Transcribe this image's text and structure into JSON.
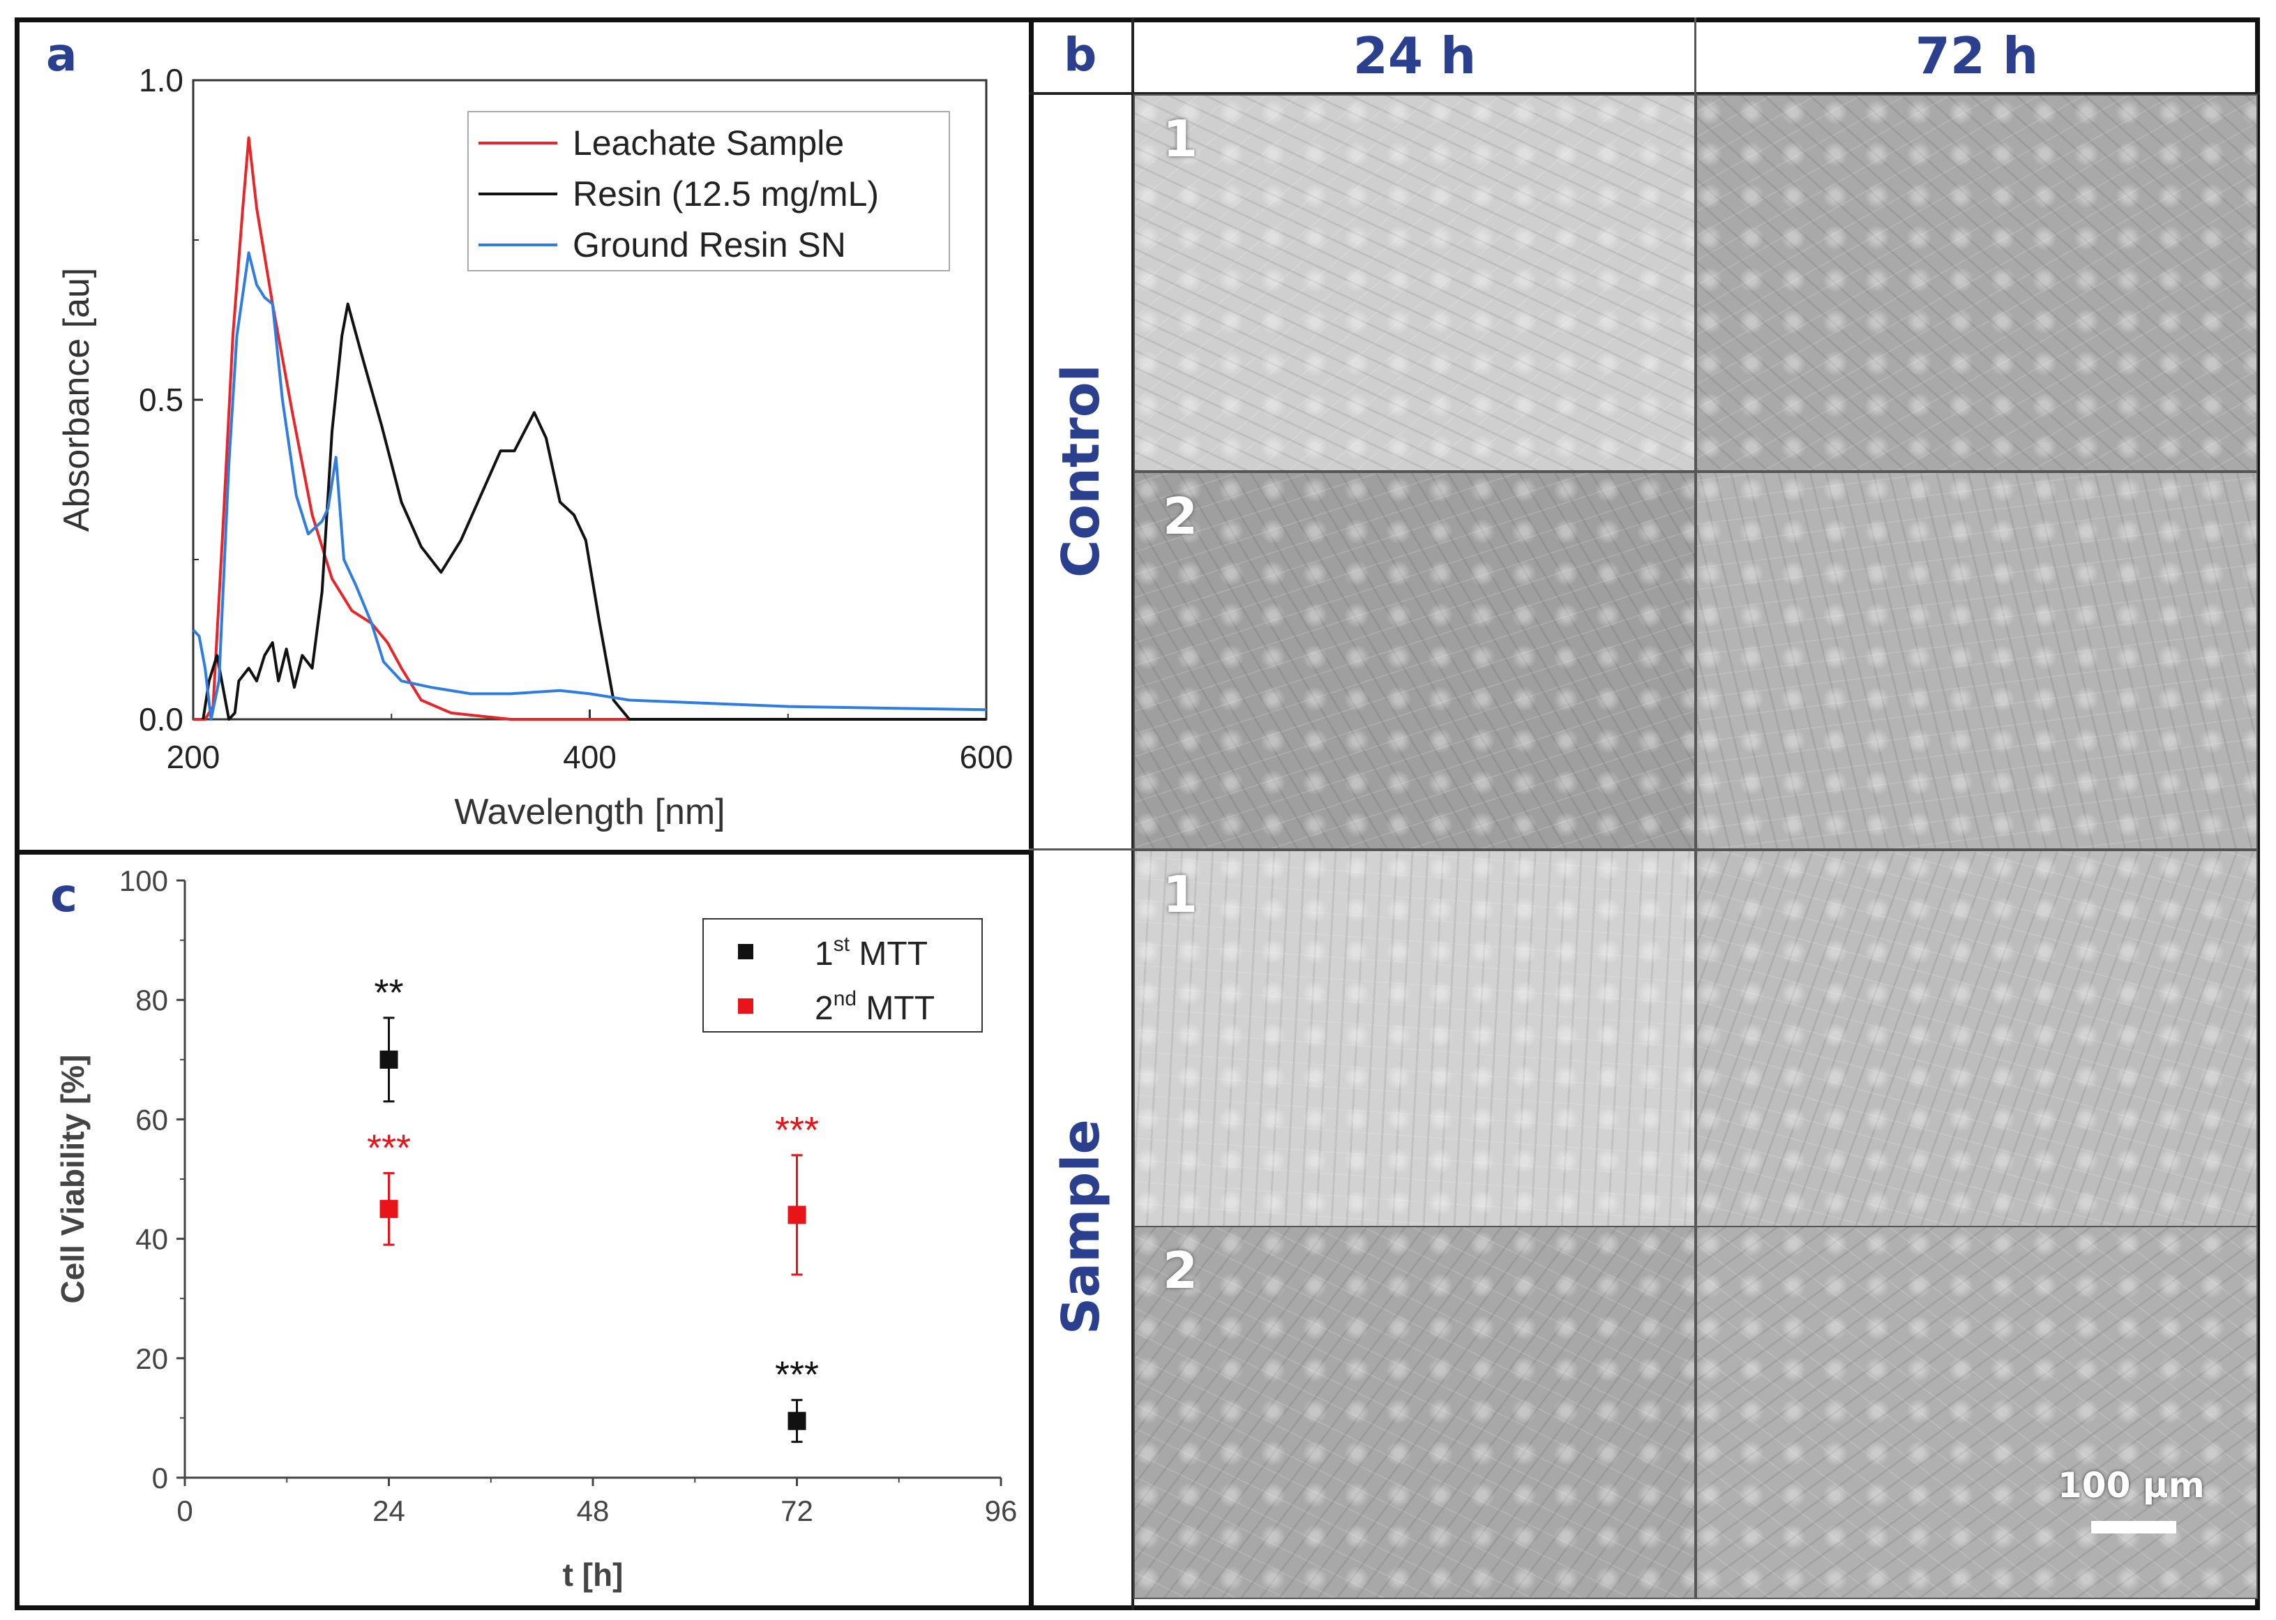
{
  "panels": {
    "a": {
      "label": "a"
    },
    "b": {
      "label": "b",
      "columns": [
        "24 h",
        "72 h"
      ],
      "rows": [
        "Control",
        "Sample"
      ],
      "tile_numbers": [
        "1",
        "2"
      ],
      "scale_bar": "100 µm",
      "tiles": [
        {
          "row": "Control",
          "num": "1",
          "col": "24 h",
          "tone": "#cfcfcf"
        },
        {
          "row": "Control",
          "num": "1",
          "col": "72 h",
          "tone": "#a9a9a9"
        },
        {
          "row": "Control",
          "num": "2",
          "col": "24 h",
          "tone": "#9f9f9f"
        },
        {
          "row": "Control",
          "num": "2",
          "col": "72 h",
          "tone": "#b4b4b4"
        },
        {
          "row": "Sample",
          "num": "1",
          "col": "24 h",
          "tone": "#d2d2d2"
        },
        {
          "row": "Sample",
          "num": "1",
          "col": "72 h",
          "tone": "#bdbdbd"
        },
        {
          "row": "Sample",
          "num": "2",
          "col": "24 h",
          "tone": "#a8a8a8"
        },
        {
          "row": "Sample",
          "num": "2",
          "col": "72 h",
          "tone": "#b0b0b0"
        }
      ]
    },
    "c": {
      "label": "c"
    }
  },
  "chart_data": [
    {
      "type": "line",
      "xlabel": "Wavelength [nm]",
      "ylabel": "Absorbance [au]",
      "xlim": [
        200,
        600
      ],
      "ylim": [
        0,
        1.0
      ],
      "xticks": [
        "200",
        "400",
        "600"
      ],
      "yticks": [
        "0.0",
        "0.5",
        "1.0"
      ],
      "legend_position": "top-right",
      "series": [
        {
          "name": "Leachate Sample",
          "color": "#e8262a",
          "points": [
            [
              200,
              0
            ],
            [
              206,
              0
            ],
            [
              210,
              0.02
            ],
            [
              215,
              0.3
            ],
            [
              220,
              0.6
            ],
            [
              225,
              0.8
            ],
            [
              228,
              0.91
            ],
            [
              232,
              0.8
            ],
            [
              240,
              0.65
            ],
            [
              250,
              0.48
            ],
            [
              260,
              0.32
            ],
            [
              270,
              0.22
            ],
            [
              280,
              0.17
            ],
            [
              290,
              0.15
            ],
            [
              298,
              0.12
            ],
            [
              305,
              0.08
            ],
            [
              315,
              0.03
            ],
            [
              330,
              0.01
            ],
            [
              360,
              0.0
            ],
            [
              600,
              0.0
            ]
          ]
        },
        {
          "name": "Resin (12.5 mg/mL)",
          "color": "#111111",
          "points": [
            [
              205,
              0
            ],
            [
              208,
              0.06
            ],
            [
              212,
              0.1
            ],
            [
              215,
              0.05
            ],
            [
              218,
              0.0
            ],
            [
              221,
              0.01
            ],
            [
              223,
              0.06
            ],
            [
              228,
              0.08
            ],
            [
              232,
              0.06
            ],
            [
              236,
              0.1
            ],
            [
              240,
              0.12
            ],
            [
              243,
              0.06
            ],
            [
              247,
              0.11
            ],
            [
              251,
              0.05
            ],
            [
              255,
              0.1
            ],
            [
              260,
              0.08
            ],
            [
              265,
              0.2
            ],
            [
              270,
              0.45
            ],
            [
              275,
              0.6
            ],
            [
              278,
              0.65
            ],
            [
              285,
              0.57
            ],
            [
              295,
              0.46
            ],
            [
              305,
              0.34
            ],
            [
              315,
              0.27
            ],
            [
              325,
              0.23
            ],
            [
              335,
              0.28
            ],
            [
              345,
              0.35
            ],
            [
              355,
              0.42
            ],
            [
              362,
              0.42
            ],
            [
              372,
              0.48
            ],
            [
              378,
              0.44
            ],
            [
              385,
              0.34
            ],
            [
              392,
              0.32
            ],
            [
              398,
              0.28
            ],
            [
              405,
              0.15
            ],
            [
              412,
              0.03
            ],
            [
              420,
              0.0
            ],
            [
              600,
              0.0
            ]
          ]
        },
        {
          "name": "Ground Resin SN",
          "color": "#2f7de1",
          "points": [
            [
              200,
              0.14
            ],
            [
              203,
              0.13
            ],
            [
              206,
              0.08
            ],
            [
              209,
              0.0
            ],
            [
              213,
              0.06
            ],
            [
              218,
              0.4
            ],
            [
              222,
              0.6
            ],
            [
              228,
              0.73
            ],
            [
              232,
              0.68
            ],
            [
              236,
              0.66
            ],
            [
              240,
              0.65
            ],
            [
              245,
              0.5
            ],
            [
              252,
              0.35
            ],
            [
              258,
              0.29
            ],
            [
              265,
              0.31
            ],
            [
              268,
              0.33
            ],
            [
              272,
              0.41
            ],
            [
              276,
              0.25
            ],
            [
              282,
              0.21
            ],
            [
              290,
              0.15
            ],
            [
              296,
              0.09
            ],
            [
              305,
              0.06
            ],
            [
              320,
              0.05
            ],
            [
              340,
              0.04
            ],
            [
              360,
              0.04
            ],
            [
              385,
              0.045
            ],
            [
              400,
              0.04
            ],
            [
              420,
              0.03
            ],
            [
              500,
              0.02
            ],
            [
              600,
              0.015
            ]
          ]
        }
      ]
    },
    {
      "type": "scatter",
      "xlabel": "t [h]",
      "ylabel": "Cell Viability [%]",
      "xlim": [
        0,
        96
      ],
      "ylim": [
        0,
        100
      ],
      "xticks": [
        "0",
        "24",
        "48",
        "72",
        "96"
      ],
      "yticks": [
        "0",
        "20",
        "40",
        "60",
        "80",
        "100"
      ],
      "legend_position": "top-right",
      "series": [
        {
          "name": "1st MTT",
          "name_base": "1",
          "name_sup": "st",
          "name_rest": " MTT",
          "color": "#111111",
          "points": [
            {
              "x": 24,
              "y": 70,
              "lo": 63,
              "hi": 77,
              "sig": "**"
            },
            {
              "x": 72,
              "y": 9.5,
              "lo": 6,
              "hi": 13,
              "sig": "***"
            }
          ]
        },
        {
          "name": "2nd MTT",
          "name_base": "2",
          "name_sup": "nd",
          "name_rest": " MTT",
          "color": "#e8141a",
          "points": [
            {
              "x": 24,
              "y": 45,
              "lo": 39,
              "hi": 51,
              "sig": "***"
            },
            {
              "x": 72,
              "y": 44,
              "lo": 34,
              "hi": 54,
              "sig": "***"
            }
          ]
        }
      ]
    }
  ]
}
